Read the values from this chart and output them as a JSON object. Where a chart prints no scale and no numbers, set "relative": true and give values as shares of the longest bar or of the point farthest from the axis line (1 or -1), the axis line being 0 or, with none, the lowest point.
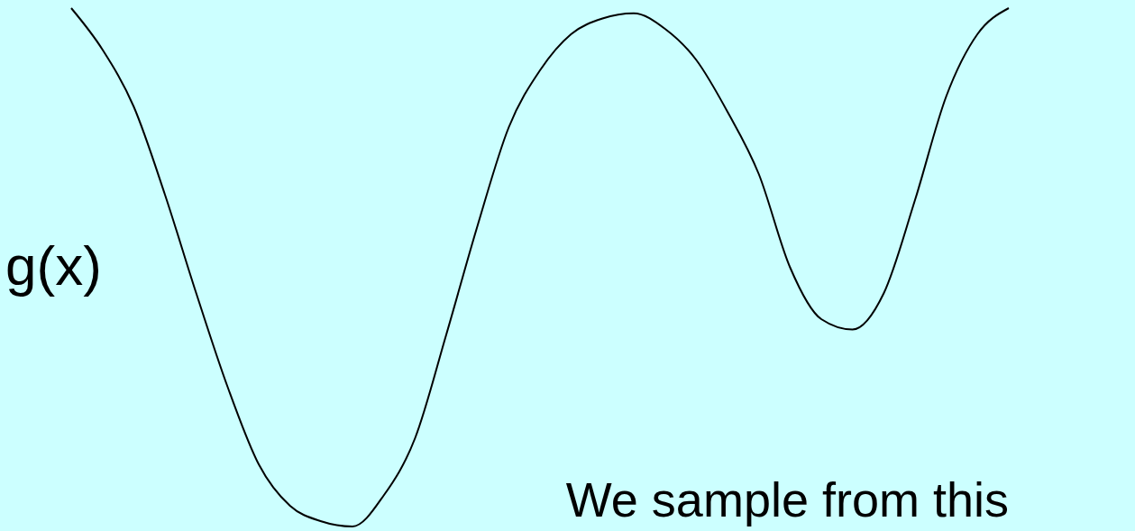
{
  "chart_data": {
    "type": "line",
    "relative": true,
    "ylabel": "g(x)",
    "annotations": [
      "We sample from this"
    ],
    "categories": [
      null,
      null,
      null,
      null,
      null,
      null,
      null,
      null,
      null,
      null,
      null,
      null,
      null,
      null,
      null,
      null,
      null,
      null,
      null,
      null,
      null,
      null,
      null,
      null,
      null,
      null,
      null,
      null,
      null,
      null,
      null
    ],
    "series": [
      {
        "color": "#000000",
        "values": [
          1.0,
          0.92,
          0.81,
          0.64,
          0.45,
          0.27,
          0.12,
          0.04,
          0.01,
          0.0,
          0.06,
          0.17,
          0.37,
          0.58,
          0.77,
          0.88,
          0.95,
          0.98,
          0.99,
          0.96,
          0.9,
          0.8,
          0.68,
          0.5,
          0.4,
          0.38,
          0.45,
          0.63,
          0.83,
          0.95,
          1.0
        ]
      }
    ],
    "grid": false,
    "legend": false,
    "marker": "none",
    "line_style": "solid"
  }
}
